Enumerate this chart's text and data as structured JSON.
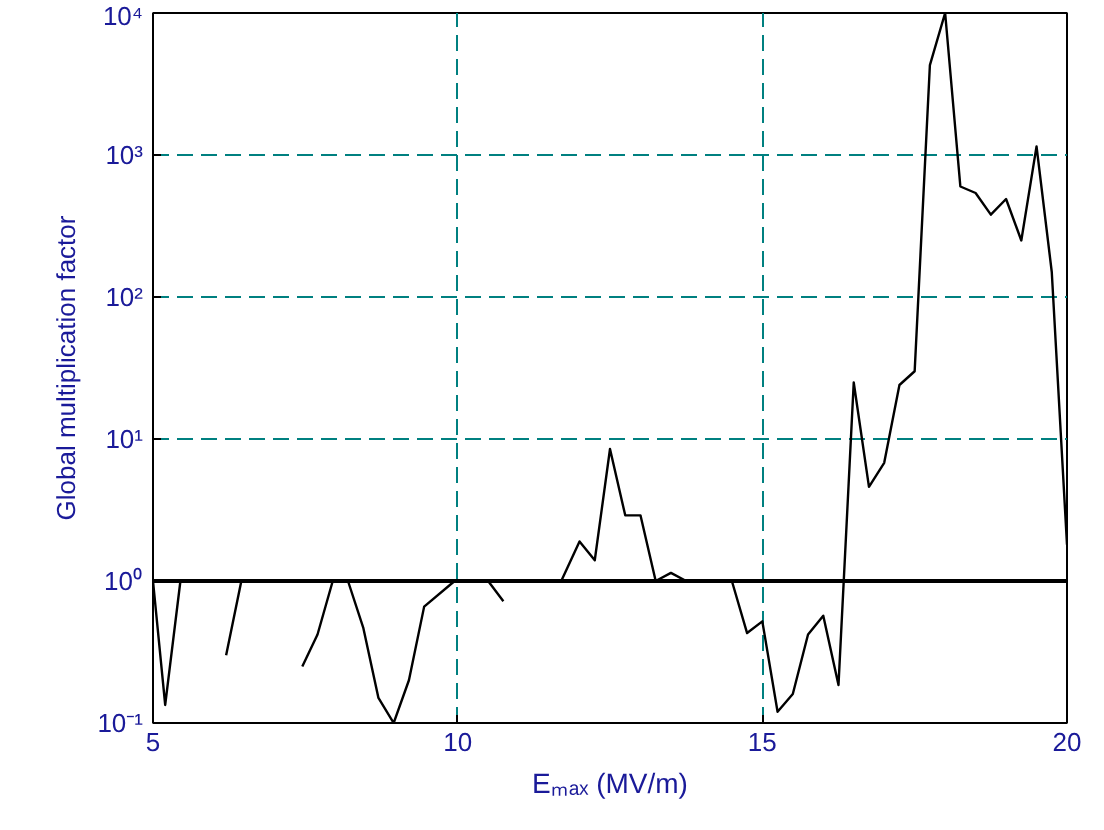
{
  "chart_data": {
    "type": "line",
    "xlabel": "Eₘₐₓ (MV/m)",
    "ylabel": "Global multiplication factor",
    "x": [
      5.0,
      5.2,
      5.45,
      5.7,
      5.85,
      6.1,
      6.2,
      6.45,
      6.7,
      7.0,
      7.3,
      7.45,
      7.7,
      7.95,
      8.2,
      8.45,
      8.7,
      8.95,
      9.2,
      9.45,
      9.95,
      10.5,
      10.75,
      11.1,
      11.35,
      11.7,
      12.0,
      12.25,
      12.5,
      12.75,
      13.0,
      13.25,
      13.5,
      13.75,
      14.5,
      14.75,
      15.0,
      15.25,
      15.5,
      15.75,
      16.0,
      16.25,
      16.5,
      16.75,
      17.0,
      17.25,
      17.5,
      17.75,
      18.0,
      18.25,
      18.5,
      18.75,
      19.0,
      19.25,
      19.5,
      19.75,
      20.0
    ],
    "series": [
      {
        "color": "#000000",
        "values": [
          1,
          0.134,
          1,
          1,
          null,
          null,
          0.3,
          1,
          1,
          null,
          null,
          0.25,
          0.42,
          1,
          1,
          0.47,
          0.15,
          0.1,
          0.2,
          0.66,
          1,
          1,
          0.72,
          null,
          null,
          1,
          1.9,
          1.4,
          8.5,
          2.9,
          2.9,
          1,
          1.14,
          1,
          1,
          0.43,
          0.52,
          0.12,
          0.16,
          0.42,
          0.57,
          0.185,
          25,
          4.6,
          6.8,
          24,
          30,
          4300,
          10000,
          600,
          540,
          380,
          490,
          250,
          1150,
          150,
          1.8
        ]
      }
    ],
    "log": "y",
    "xlim": [
      5,
      20
    ],
    "ylim": [
      0.1,
      10000
    ],
    "xticks": [
      5,
      10,
      15,
      20
    ],
    "yticks": [
      {
        "value": 0.1,
        "label": "10⁻¹"
      },
      {
        "value": 1,
        "label": "10⁰"
      },
      {
        "value": 10,
        "label": "10¹"
      },
      {
        "value": 100,
        "label": "10²"
      },
      {
        "value": 1000,
        "label": "10³"
      },
      {
        "value": 10000,
        "label": "10⁴"
      }
    ],
    "grid": true,
    "line_style": "solid",
    "marker": "none",
    "ref_lines": [
      {
        "axis": "y",
        "value": 1,
        "color": "#000000",
        "line_style": "solid"
      }
    ]
  }
}
